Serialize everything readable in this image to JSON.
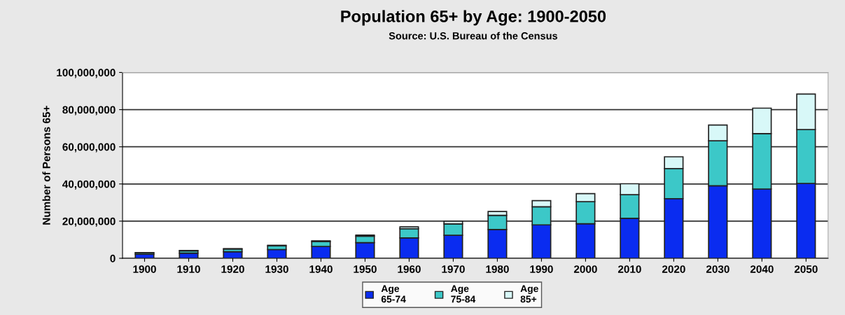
{
  "chart_data": {
    "type": "bar",
    "title": "Population 65+ by Age: 1900-2050",
    "subtitle": "Source: U.S. Bureau of the Census",
    "ylabel": "Number of Persons 65+",
    "categories": [
      "1900",
      "1910",
      "1920",
      "1930",
      "1940",
      "1950",
      "1960",
      "1970",
      "1980",
      "1990",
      "2000",
      "2010",
      "2020",
      "2030",
      "2040",
      "2050"
    ],
    "stacked": true,
    "series": [
      {
        "name": "Age\n65-74",
        "color": "#0a2cf0",
        "values": [
          2200000,
          2800000,
          3500000,
          4700000,
          6400000,
          8400000,
          11000000,
          12400000,
          15500000,
          18000000,
          18600000,
          21500000,
          32100000,
          39000000,
          37300000,
          40300000
        ]
      },
      {
        "name": "Age\n75-84",
        "color": "#3cc8c8",
        "values": [
          800000,
          1200000,
          1500000,
          2000000,
          2600000,
          3500000,
          4900000,
          6100000,
          7600000,
          9700000,
          11900000,
          12700000,
          16200000,
          24200000,
          29800000,
          29000000
        ]
      },
      {
        "name": "Age\n85+",
        "color": "#d8f8f8",
        "values": [
          100000,
          200000,
          200000,
          300000,
          400000,
          600000,
          1000000,
          1500000,
          2100000,
          3300000,
          4300000,
          5900000,
          6300000,
          8500000,
          13700000,
          19100000
        ]
      }
    ],
    "ylim": [
      0,
      100000000
    ],
    "yticks": [
      {
        "value": 0,
        "label": "0"
      },
      {
        "value": 20000000,
        "label": "20,000,000"
      },
      {
        "value": 40000000,
        "label": "40,000,000"
      },
      {
        "value": 60000000,
        "label": "60,000,000"
      },
      {
        "value": 80000000,
        "label": "80,000,000"
      },
      {
        "value": 100000000,
        "label": "100,000,000"
      }
    ],
    "grid": "y",
    "legend": "bottom"
  }
}
